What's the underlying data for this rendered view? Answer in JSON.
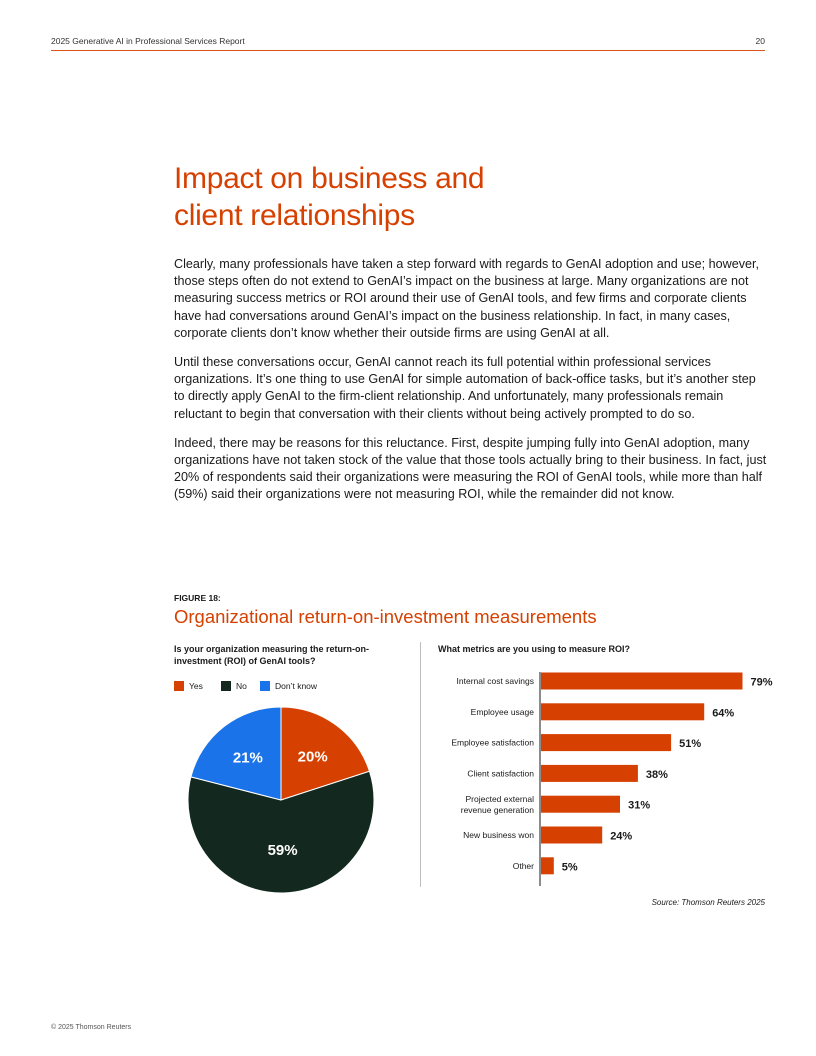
{
  "header": {
    "title": "2025 Generative AI in Professional Services Report",
    "page_number": "20"
  },
  "heading": {
    "line1": "Impact on business and",
    "line2": "client relationships"
  },
  "paragraphs": [
    "Clearly, many professionals have taken a step forward with regards to GenAI adoption and use; however, those steps often do not extend to GenAI’s impact on the business at large. Many organizations are not measuring success metrics or ROI around their use of GenAI tools, and few firms and corporate clients have had conversations around GenAI’s impact on the business relationship. In fact, in many cases, corporate clients don’t know whether their outside firms are using GenAI at all.",
    "Until these conversations occur, GenAI cannot reach its full potential within professional services organizations. It’s one thing to use GenAI for simple automation of back-office tasks, but it’s another step to directly apply GenAI to the firm-client relationship. And unfortunately, many professionals remain reluctant to begin that conversation with their clients without being actively prompted to do so.",
    "Indeed, there may be reasons for this reluctance. First, despite jumping fully into GenAI adoption, many organizations have not taken stock of the value that those tools actually bring to their business. In fact, just 20% of respondents said their organizations were measuring the ROI of GenAI tools, while more than half (59%) said their organizations were not measuring ROI, while the remainder did not know."
  ],
  "figure": {
    "label": "FIGURE 18:",
    "title": "Organizational return-on-investment measurements"
  },
  "chart_data": [
    {
      "type": "pie",
      "title": "Is your organization measuring the return-on-investment (ROI) of GenAI tools?",
      "legend": [
        "Yes",
        "No",
        "Don’t know"
      ],
      "slices": [
        {
          "label": "Yes",
          "value": 20,
          "display": "20%",
          "color": "#d64000"
        },
        {
          "label": "No",
          "value": 59,
          "display": "59%",
          "color": "#13291f"
        },
        {
          "label": "Don’t know",
          "value": 21,
          "display": "21%",
          "color": "#1a73e8"
        }
      ],
      "legend_placement": "top-left"
    },
    {
      "type": "bar",
      "orientation": "horizontal",
      "title": "What metrics are you using to measure ROI?",
      "categories": [
        "Internal cost savings",
        "Employee usage",
        "Employee satisfaction",
        "Client satisfaction",
        "Projected external revenue generation",
        "New business won",
        "Other"
      ],
      "category_lines": [
        [
          "Internal cost savings"
        ],
        [
          "Employee usage"
        ],
        [
          "Employee satisfaction"
        ],
        [
          "Client satisfaction"
        ],
        [
          "Projected external",
          "revenue generation"
        ],
        [
          "New business won"
        ],
        [
          "Other"
        ]
      ],
      "values": [
        79,
        64,
        51,
        38,
        31,
        24,
        5
      ],
      "value_labels": [
        "79%",
        "64%",
        "51%",
        "38%",
        "31%",
        "24%",
        "5%"
      ],
      "xlim": [
        0,
        100
      ],
      "bar_color": "#d64000"
    }
  ],
  "source": "Source: Thomson Reuters 2025",
  "footer": "© 2025 Thomson Reuters"
}
